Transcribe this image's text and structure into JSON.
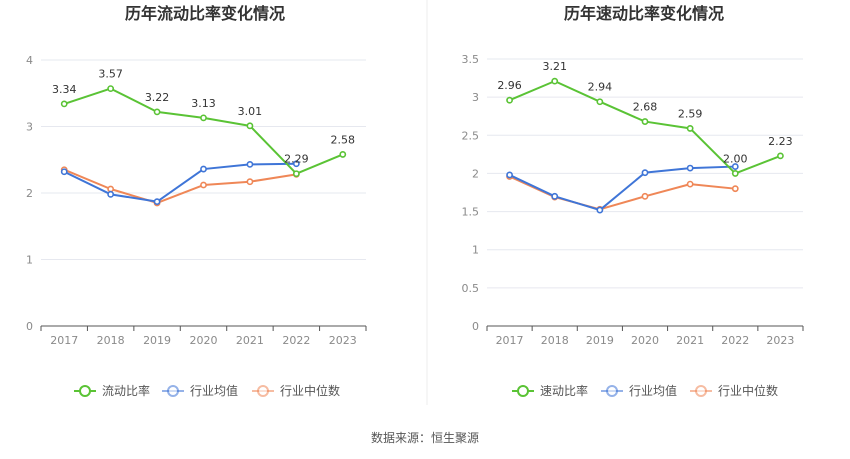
{
  "source": "数据来源：恒生聚源",
  "colors": {
    "company": "#5ac335",
    "industry_avg": "#3f75d7",
    "industry_median": "#ef8757"
  },
  "chart_data": [
    {
      "type": "line",
      "title": "历年流动比率变化情况",
      "categories": [
        "2017",
        "2018",
        "2019",
        "2020",
        "2021",
        "2022",
        "2023"
      ],
      "y_ticks": [
        "0",
        "1",
        "2",
        "3",
        "4"
      ],
      "ylim": [
        0,
        4
      ],
      "grid": true,
      "legend_position": "bottom-center",
      "series": [
        {
          "name": "流动比率",
          "color_key": "company",
          "values": [
            3.34,
            3.57,
            3.22,
            3.13,
            3.01,
            2.29,
            2.58
          ],
          "labels": [
            "3.34",
            "3.57",
            "3.22",
            "3.13",
            "3.01",
            "2.29",
            "2.58"
          ]
        },
        {
          "name": "行业均值",
          "color_key": "industry_avg",
          "values": [
            2.32,
            1.98,
            1.87,
            2.36,
            2.43,
            2.44,
            null
          ]
        },
        {
          "name": "行业中位数",
          "color_key": "industry_median",
          "values": [
            2.35,
            2.06,
            1.85,
            2.12,
            2.17,
            2.28,
            null
          ]
        }
      ]
    },
    {
      "type": "line",
      "title": "历年速动比率变化情况",
      "categories": [
        "2017",
        "2018",
        "2019",
        "2020",
        "2021",
        "2022",
        "2023"
      ],
      "y_ticks": [
        "0",
        "0.5",
        "1",
        "1.5",
        "2",
        "2.5",
        "3",
        "3.5"
      ],
      "ylim": [
        0,
        3.5
      ],
      "grid": true,
      "legend_position": "bottom-center",
      "series": [
        {
          "name": "速动比率",
          "color_key": "company",
          "values": [
            2.96,
            3.21,
            2.94,
            2.68,
            2.59,
            2.0,
            2.23
          ],
          "labels": [
            "2.96",
            "3.21",
            "2.94",
            "2.68",
            "2.59",
            "2.00",
            "2.23"
          ]
        },
        {
          "name": "行业均值",
          "color_key": "industry_avg",
          "values": [
            1.98,
            1.7,
            1.52,
            2.01,
            2.07,
            2.09,
            null
          ]
        },
        {
          "name": "行业中位数",
          "color_key": "industry_median",
          "values": [
            1.96,
            1.69,
            1.53,
            1.7,
            1.86,
            1.8,
            null
          ]
        }
      ]
    }
  ]
}
